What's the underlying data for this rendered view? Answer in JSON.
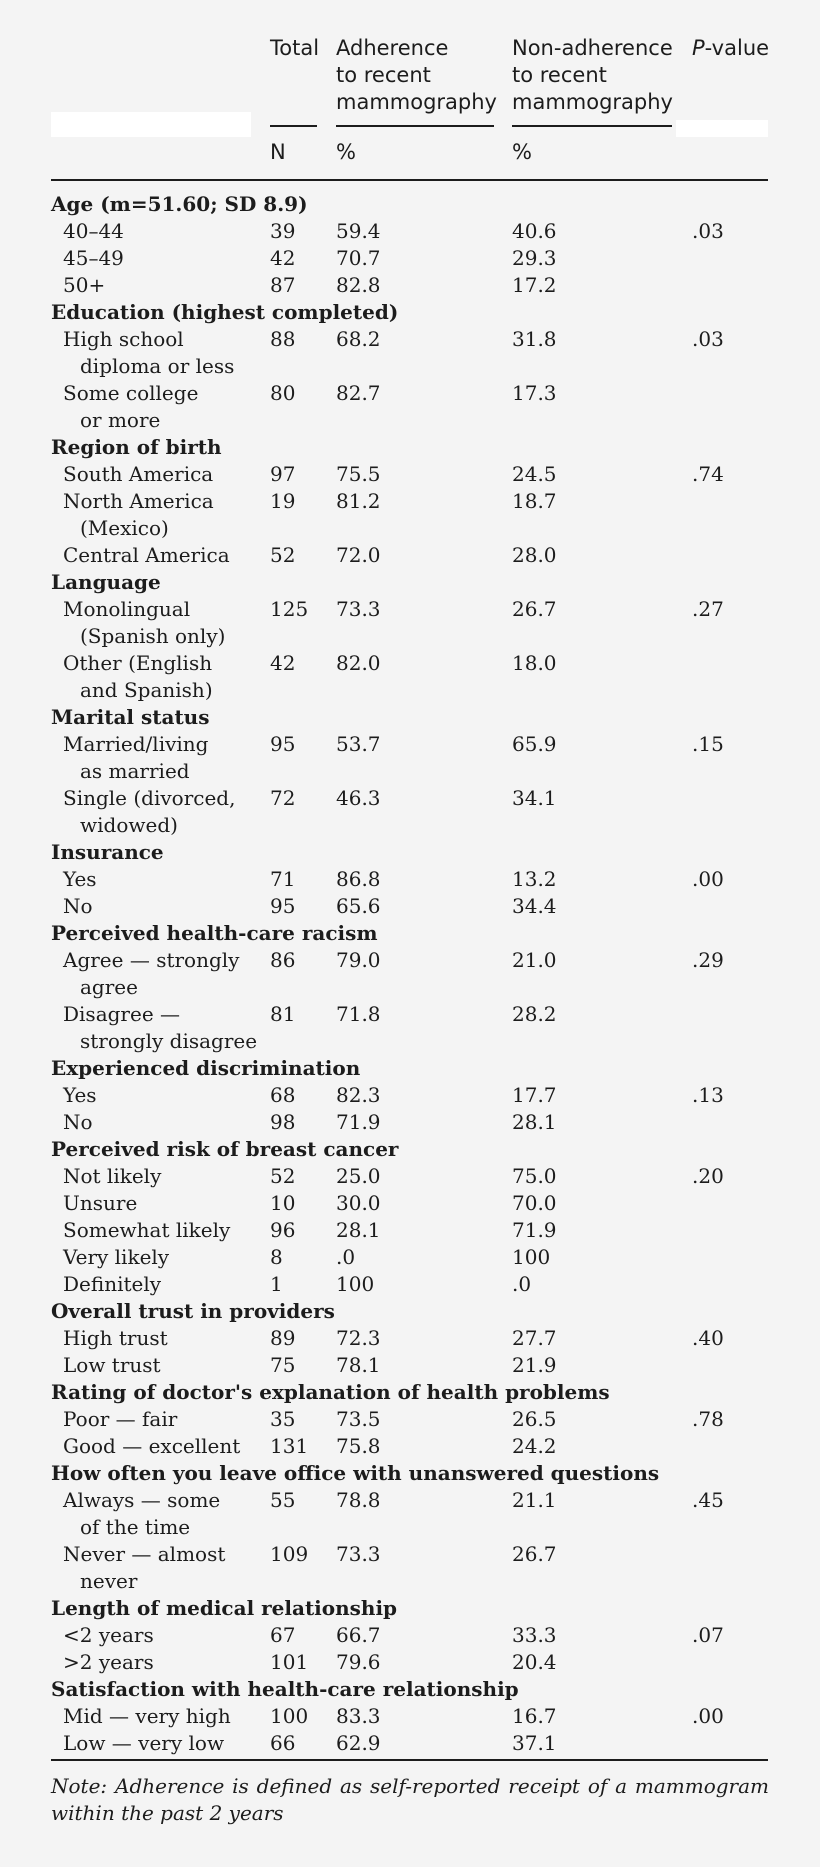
{
  "header": {
    "total": "Total",
    "adherence": [
      "Adherence",
      "to recent",
      "mammography"
    ],
    "nonadherence": [
      "Non-adherence",
      "to recent",
      "mammography"
    ],
    "pvalue_italic": "P",
    "pvalue_rest": "-value",
    "sub_n": "N",
    "sub_pct_adherence": "%",
    "sub_pct_nonadherence": "%"
  },
  "rows": [
    {
      "type": "head",
      "label": "Age (m=51.60; SD 8.9)"
    },
    {
      "type": "data",
      "label": "40–44",
      "n": "39",
      "adherence": "59.4",
      "nonadherence": "40.6",
      "p": ".03"
    },
    {
      "type": "data",
      "label": "45–49",
      "n": "42",
      "adherence": "70.7",
      "nonadherence": "29.3",
      "p": ""
    },
    {
      "type": "data",
      "label": "50+",
      "n": "87",
      "adherence": "82.8",
      "nonadherence": "17.2",
      "p": ""
    },
    {
      "type": "head",
      "label": "Education (highest completed)"
    },
    {
      "type": "data",
      "label": "High school",
      "n": "88",
      "adherence": "68.2",
      "nonadherence": "31.8",
      "p": ".03"
    },
    {
      "type": "cont",
      "label": "diploma or less"
    },
    {
      "type": "data",
      "label": "Some college",
      "n": "80",
      "adherence": "82.7",
      "nonadherence": "17.3",
      "p": ""
    },
    {
      "type": "cont",
      "label": "or more"
    },
    {
      "type": "head",
      "label": "Region of birth"
    },
    {
      "type": "data",
      "label": "South America",
      "n": "97",
      "adherence": "75.5",
      "nonadherence": "24.5",
      "p": ".74"
    },
    {
      "type": "data",
      "label": "North America",
      "n": "19",
      "adherence": "81.2",
      "nonadherence": "18.7",
      "p": ""
    },
    {
      "type": "cont",
      "label": "(Mexico)"
    },
    {
      "type": "data",
      "label": "Central America",
      "n": "52",
      "adherence": "72.0",
      "nonadherence": "28.0",
      "p": ""
    },
    {
      "type": "head",
      "label": "Language"
    },
    {
      "type": "data",
      "label": "Monolingual",
      "n": "125",
      "adherence": "73.3",
      "nonadherence": "26.7",
      "p": ".27"
    },
    {
      "type": "cont",
      "label": "(Spanish only)"
    },
    {
      "type": "data",
      "label": "Other (English",
      "n": "42",
      "adherence": "82.0",
      "nonadherence": "18.0",
      "p": ""
    },
    {
      "type": "cont",
      "label": "and Spanish)"
    },
    {
      "type": "head",
      "label": "Marital status"
    },
    {
      "type": "data",
      "label": "Married/living",
      "n": "95",
      "adherence": "53.7",
      "nonadherence": "65.9",
      "p": ".15"
    },
    {
      "type": "cont",
      "label": "as married"
    },
    {
      "type": "data",
      "label": "Single (divorced,",
      "n": "72",
      "adherence": "46.3",
      "nonadherence": "34.1",
      "p": ""
    },
    {
      "type": "cont",
      "label": "widowed)"
    },
    {
      "type": "head",
      "label": "Insurance"
    },
    {
      "type": "data",
      "label": "Yes",
      "n": "71",
      "adherence": "86.8",
      "nonadherence": "13.2",
      "p": ".00"
    },
    {
      "type": "data",
      "label": "No",
      "n": "95",
      "adherence": "65.6",
      "nonadherence": "34.4",
      "p": ""
    },
    {
      "type": "head",
      "label": "Perceived health-care racism"
    },
    {
      "type": "data",
      "label": "Agree — strongly",
      "n": "86",
      "adherence": "79.0",
      "nonadherence": "21.0",
      "p": ".29"
    },
    {
      "type": "cont",
      "label": "agree"
    },
    {
      "type": "data",
      "label": "Disagree —",
      "n": "81",
      "adherence": "71.8",
      "nonadherence": "28.2",
      "p": ""
    },
    {
      "type": "cont",
      "label": "strongly disagree"
    },
    {
      "type": "head",
      "label": "Experienced discrimination"
    },
    {
      "type": "data",
      "label": "Yes",
      "n": "68",
      "adherence": "82.3",
      "nonadherence": "17.7",
      "p": ".13"
    },
    {
      "type": "data",
      "label": "No",
      "n": "98",
      "adherence": "71.9",
      "nonadherence": "28.1",
      "p": ""
    },
    {
      "type": "head",
      "label": "Perceived risk of breast cancer"
    },
    {
      "type": "data",
      "label": "Not likely",
      "n": "52",
      "adherence": "25.0",
      "nonadherence": "75.0",
      "p": ".20"
    },
    {
      "type": "data",
      "label": "Unsure",
      "n": "10",
      "adherence": "30.0",
      "nonadherence": "70.0",
      "p": ""
    },
    {
      "type": "data",
      "label": "Somewhat likely",
      "n": "96",
      "adherence": "28.1",
      "nonadherence": "71.9",
      "p": ""
    },
    {
      "type": "data",
      "label": "Very likely",
      "n": "8",
      "adherence": ".0",
      "nonadherence": "100",
      "p": ""
    },
    {
      "type": "data",
      "label": "Definitely",
      "n": "1",
      "adherence": "100",
      "nonadherence": ".0",
      "p": ""
    },
    {
      "type": "head",
      "label": "Overall trust in providers"
    },
    {
      "type": "data",
      "label": "High trust",
      "n": "89",
      "adherence": "72.3",
      "nonadherence": "27.7",
      "p": ".40"
    },
    {
      "type": "data",
      "label": "Low trust",
      "n": "75",
      "adherence": "78.1",
      "nonadherence": "21.9",
      "p": ""
    },
    {
      "type": "head",
      "label": "Rating of doctor's explanation of health problems"
    },
    {
      "type": "data",
      "label": "Poor — fair",
      "n": "35",
      "adherence": "73.5",
      "nonadherence": "26.5",
      "p": ".78"
    },
    {
      "type": "data",
      "label": "Good — excellent",
      "n": "131",
      "adherence": "75.8",
      "nonadherence": "24.2",
      "p": ""
    },
    {
      "type": "head",
      "label": "How often you leave office with unanswered questions"
    },
    {
      "type": "data",
      "label": "Always — some",
      "n": "55",
      "adherence": "78.8",
      "nonadherence": "21.1",
      "p": ".45"
    },
    {
      "type": "cont",
      "label": "of the time"
    },
    {
      "type": "data",
      "label": "Never — almost",
      "n": "109",
      "adherence": "73.3",
      "nonadherence": "26.7",
      "p": ""
    },
    {
      "type": "cont",
      "label": "never"
    },
    {
      "type": "head",
      "label": "Length of medical relationship"
    },
    {
      "type": "data",
      "label": "<2 years",
      "n": "67",
      "adherence": "66.7",
      "nonadherence": "33.3",
      "p": ".07"
    },
    {
      "type": "data",
      "label": ">2 years",
      "n": "101",
      "adherence": "79.6",
      "nonadherence": "20.4",
      "p": ""
    },
    {
      "type": "head",
      "label": "Satisfaction with health-care relationship"
    },
    {
      "type": "data",
      "label": "Mid — very high",
      "n": "100",
      "adherence": "83.3",
      "nonadherence": "16.7",
      "p": ".00"
    },
    {
      "type": "data",
      "label": "Low — very low",
      "n": "66",
      "adherence": "62.9",
      "nonadherence": "37.1",
      "p": ""
    }
  ],
  "note": "Note: Adherence is defined as self-reported receipt of a mammogram within the past 2 years"
}
